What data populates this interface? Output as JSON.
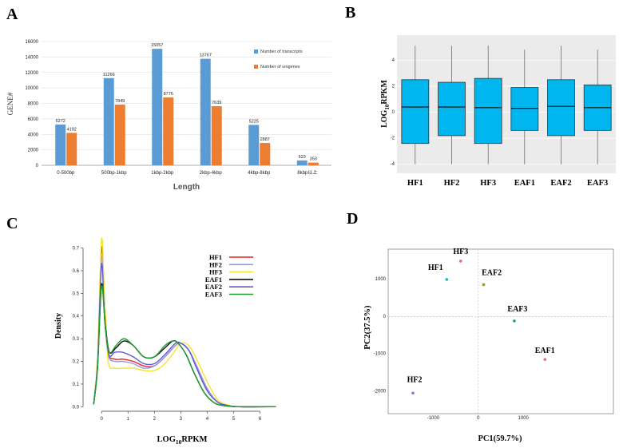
{
  "panels": {
    "a": "A",
    "b": "B",
    "c": "C",
    "d": "D"
  },
  "chart_data": [
    {
      "type": "bar",
      "panel": "A",
      "categories": [
        "0-500bp",
        "500bp-1kbp",
        "1kbp-2kbp",
        "2kbp-4kbp",
        "4kbp-8kbp",
        "8kbp以上"
      ],
      "series": [
        {
          "name": "Number of transcripts",
          "color": "#5b9bd5",
          "values": [
            5272,
            11266,
            15057,
            13767,
            5225,
            623
          ]
        },
        {
          "name": "Number of unigenes",
          "color": "#ed7d31",
          "values": [
            4192,
            7849,
            8776,
            7639,
            2887,
            353
          ]
        }
      ],
      "xlabel": "Length",
      "ylabel": "GENE#",
      "ylim": [
        0,
        16000
      ],
      "yticks": [
        0,
        2000,
        4000,
        6000,
        8000,
        10000,
        12000,
        14000,
        16000
      ]
    },
    {
      "type": "box",
      "panel": "B",
      "categories": [
        "HF1",
        "HF2",
        "HF3",
        "EAF1",
        "EAF2",
        "EAF3"
      ],
      "ylabel_main": "LOG",
      "ylabel_sub": "10",
      "ylabel_tail": "RPKM",
      "color": "#00b6ee",
      "boxes": [
        {
          "name": "HF1",
          "min": -4.0,
          "q1": -2.4,
          "median": 0.4,
          "q3": 2.5,
          "max": 5.1
        },
        {
          "name": "HF2",
          "min": -4.0,
          "q1": -1.8,
          "median": 0.4,
          "q3": 2.3,
          "max": 5.1
        },
        {
          "name": "HF3",
          "min": -4.0,
          "q1": -2.4,
          "median": 0.35,
          "q3": 2.6,
          "max": 5.1
        },
        {
          "name": "EAF1",
          "min": -4.0,
          "q1": -1.4,
          "median": 0.3,
          "q3": 1.9,
          "max": 4.8
        },
        {
          "name": "EAF2",
          "min": -4.0,
          "q1": -1.8,
          "median": 0.45,
          "q3": 2.5,
          "max": 5.1
        },
        {
          "name": "EAF3",
          "min": -4.0,
          "q1": -1.4,
          "median": 0.35,
          "q3": 2.1,
          "max": 4.8
        }
      ],
      "ylim": [
        -4.2,
        5.8
      ],
      "yticks": [
        -4,
        -2,
        0,
        2,
        4
      ]
    },
    {
      "type": "line",
      "panel": "C",
      "xlabel_main": "LOG",
      "xlabel_sub": "10",
      "xlabel_tail": "RPKM",
      "ylabel": "Density",
      "xlim": [
        -0.7,
        6.8
      ],
      "ylim": [
        -0.02,
        0.73
      ],
      "xticks": [
        0,
        1,
        2,
        3,
        4,
        5,
        6
      ],
      "yticks": [
        0.0,
        0.1,
        0.2,
        0.3,
        0.4,
        0.5,
        0.6,
        0.7
      ],
      "series": [
        {
          "name": "HF1",
          "color": "#e8221d",
          "x": [
            -0.3,
            -0.15,
            0,
            0.12,
            0.25,
            0.5,
            0.8,
            1.2,
            1.6,
            2.0,
            2.4,
            2.8,
            3.0,
            3.3,
            3.6,
            4.0,
            4.4,
            4.8,
            5.2,
            6.6
          ],
          "y": [
            0.01,
            0.2,
            0.7,
            0.45,
            0.24,
            0.21,
            0.21,
            0.2,
            0.18,
            0.18,
            0.22,
            0.27,
            0.28,
            0.25,
            0.18,
            0.08,
            0.02,
            0.005,
            0.0,
            0.0
          ]
        },
        {
          "name": "HF2",
          "color": "#9a9ad8",
          "x": [
            -0.3,
            -0.15,
            0,
            0.12,
            0.25,
            0.5,
            0.8,
            1.2,
            1.6,
            2.0,
            2.4,
            2.8,
            3.0,
            3.3,
            3.6,
            4.0,
            4.4,
            4.8,
            5.2,
            6.6
          ],
          "y": [
            0.01,
            0.2,
            0.66,
            0.42,
            0.23,
            0.2,
            0.2,
            0.19,
            0.17,
            0.18,
            0.22,
            0.27,
            0.28,
            0.25,
            0.18,
            0.08,
            0.02,
            0.005,
            0.0,
            0.0
          ]
        },
        {
          "name": "HF3",
          "color": "#f2e52e",
          "x": [
            -0.3,
            -0.15,
            0,
            0.12,
            0.25,
            0.5,
            0.8,
            1.2,
            1.6,
            2.0,
            2.4,
            2.8,
            3.0,
            3.3,
            3.6,
            4.0,
            4.4,
            4.8,
            5.2,
            6.6
          ],
          "y": [
            0.01,
            0.22,
            0.74,
            0.46,
            0.2,
            0.17,
            0.17,
            0.17,
            0.16,
            0.16,
            0.19,
            0.25,
            0.28,
            0.27,
            0.21,
            0.11,
            0.03,
            0.008,
            0.0,
            0.0
          ]
        },
        {
          "name": "EAF1",
          "color": "#111111",
          "x": [
            -0.3,
            -0.15,
            0,
            0.15,
            0.3,
            0.55,
            0.85,
            1.2,
            1.6,
            2.0,
            2.4,
            2.7,
            2.9,
            3.2,
            3.5,
            3.9,
            4.3,
            4.7,
            5.2,
            6.6
          ],
          "y": [
            0.01,
            0.18,
            0.54,
            0.35,
            0.24,
            0.26,
            0.29,
            0.27,
            0.22,
            0.22,
            0.26,
            0.29,
            0.28,
            0.23,
            0.15,
            0.06,
            0.015,
            0.004,
            0.0,
            0.0
          ]
        },
        {
          "name": "EAF2",
          "color": "#5a5ad8",
          "x": [
            -0.3,
            -0.15,
            0,
            0.12,
            0.28,
            0.5,
            0.8,
            1.2,
            1.6,
            2.0,
            2.4,
            2.8,
            3.0,
            3.3,
            3.6,
            4.0,
            4.4,
            4.8,
            5.2,
            6.6
          ],
          "y": [
            0.01,
            0.19,
            0.63,
            0.38,
            0.23,
            0.24,
            0.24,
            0.22,
            0.19,
            0.19,
            0.23,
            0.28,
            0.28,
            0.25,
            0.17,
            0.07,
            0.02,
            0.005,
            0.0,
            0.0
          ]
        },
        {
          "name": "EAF3",
          "color": "#1e9e2e",
          "x": [
            -0.3,
            -0.15,
            0,
            0.15,
            0.3,
            0.55,
            0.85,
            1.2,
            1.6,
            2.0,
            2.4,
            2.7,
            2.9,
            3.2,
            3.5,
            3.9,
            4.3,
            4.7,
            5.2,
            6.6
          ],
          "y": [
            0.01,
            0.17,
            0.53,
            0.34,
            0.24,
            0.27,
            0.3,
            0.27,
            0.22,
            0.22,
            0.27,
            0.29,
            0.28,
            0.23,
            0.15,
            0.06,
            0.015,
            0.004,
            0.0,
            0.0
          ]
        }
      ]
    },
    {
      "type": "scatter",
      "panel": "D",
      "xlabel": "PC1(59.7%)",
      "ylabel": "PC2(37.5%)",
      "xlim": [
        -2000,
        3000
      ],
      "ylim": [
        -2600,
        1800
      ],
      "xticks": [
        -1000,
        0,
        1000
      ],
      "yticks": [
        -2000,
        -1000,
        0,
        1000
      ],
      "points": [
        {
          "name": "HF1",
          "x": -700,
          "y": 990,
          "color": "#1ab8b8"
        },
        {
          "name": "HF2",
          "x": -1450,
          "y": -2050,
          "color": "#7a7ae0"
        },
        {
          "name": "HF3",
          "x": -390,
          "y": 1480,
          "color": "#e86a8a"
        },
        {
          "name": "EAF1",
          "x": 1480,
          "y": -1150,
          "color": "#e86a6a"
        },
        {
          "name": "EAF2",
          "x": 120,
          "y": 850,
          "color": "#9a9a20"
        },
        {
          "name": "EAF3",
          "x": 800,
          "y": -120,
          "color": "#1e9e6e"
        }
      ]
    }
  ]
}
